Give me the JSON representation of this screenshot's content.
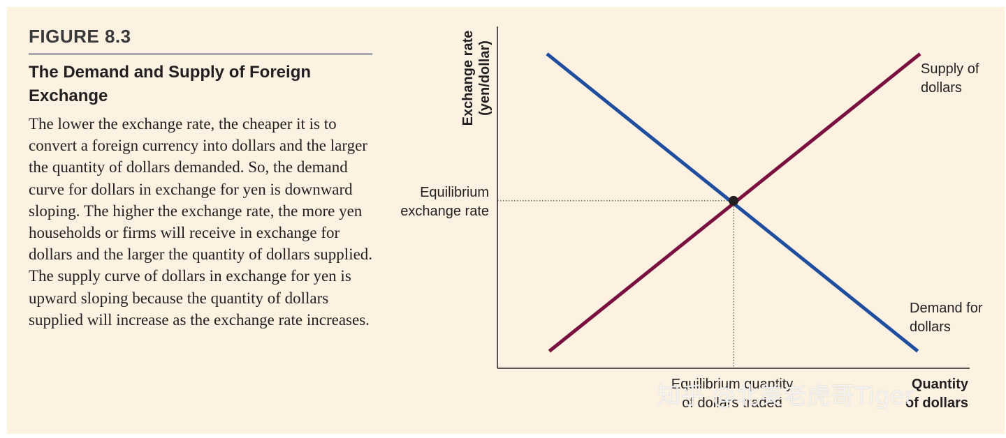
{
  "figure": {
    "label": "FIGURE 8.3",
    "title": "The Demand and Supply of Foreign Exchange",
    "caption": "The lower the exchange rate, the cheaper it is to convert a foreign currency into dollars and the larger the quantity of dollars demanded. So, the demand curve for dollars in exchange for yen is downward sloping. The higher the exchange rate, the more yen households or firms will receive in exchange for dollars and the larger the quantity of dollars supplied. The supply curve of dollars in exchange for yen is upward sloping because the quantity of dollars supplied will increase as the exchange rate increases."
  },
  "chart_data": {
    "type": "line",
    "title": "The Demand and Supply of Foreign Exchange",
    "ylabel_line1": "Exchange rate",
    "ylabel_line2": "(yen/dollar)",
    "xlabel_line1": "Quantity",
    "xlabel_line2": "of dollars",
    "xlim": [
      0,
      100
    ],
    "ylim": [
      0,
      100
    ],
    "series": [
      {
        "name": "Demand for dollars",
        "label_line1": "Demand for",
        "label_line2": "dollars",
        "color": "#1f4e9e",
        "x": [
          10.5,
          89
        ],
        "y": [
          92,
          5
        ]
      },
      {
        "name": "Supply of dollars",
        "label_line1": "Supply of",
        "label_line2": "dollars",
        "color": "#7a1040",
        "x": [
          11,
          89.5
        ],
        "y": [
          5,
          92
        ]
      }
    ],
    "equilibrium": {
      "x": 50,
      "y": 49,
      "rate_label_line1": "Equilibrium",
      "rate_label_line2": "exchange rate",
      "quantity_label_line1": "Equilibrium quantity",
      "quantity_label_line2": "of dollars traded"
    }
  },
  "watermark": "知乎 @北美老虎哥Tiger",
  "colors": {
    "panel_bg": "#fdf2e1",
    "rule": "#a7a9ac",
    "axis": "#231f20"
  }
}
